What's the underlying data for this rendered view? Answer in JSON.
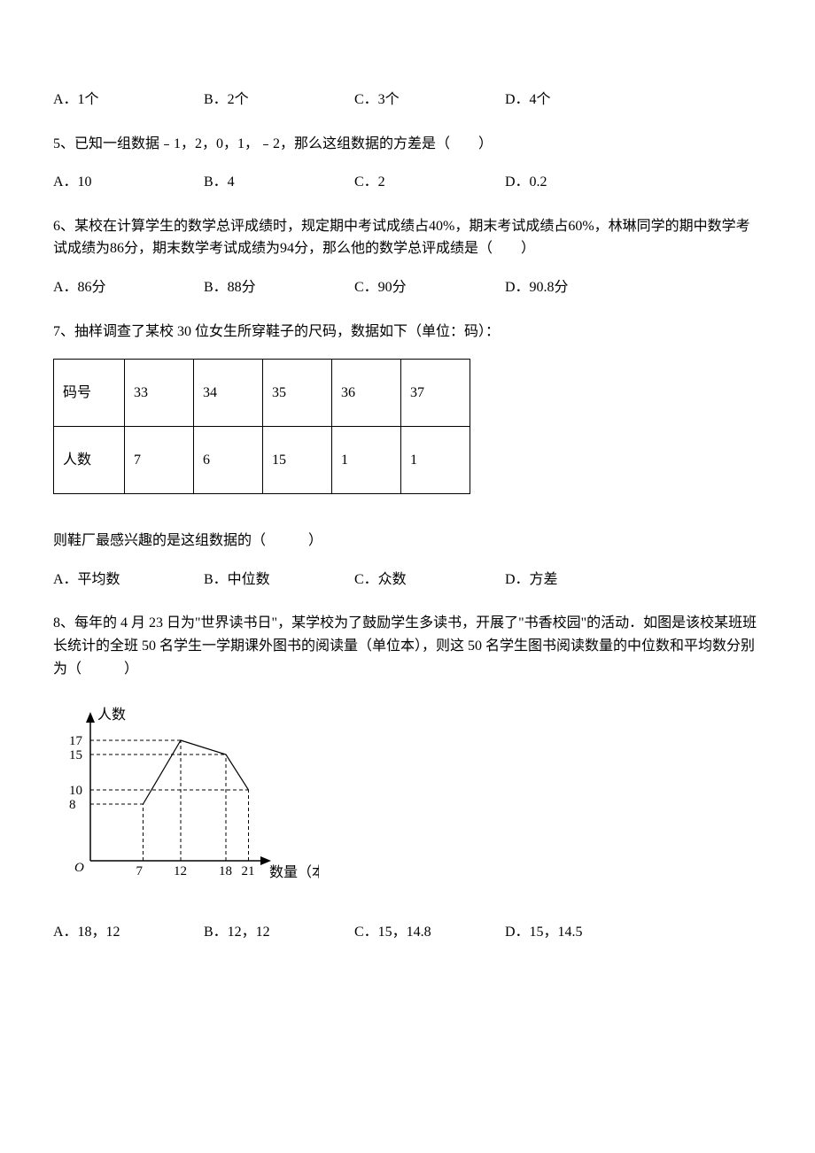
{
  "q4_options": {
    "a": "A．1个",
    "b": "B．2个",
    "c": "C．3个",
    "d": "D．4个"
  },
  "q5": {
    "text": "5、已知一组数据﹣1，2，0，1，﹣2，那么这组数据的方差是（　　）",
    "a": "A．10",
    "b": "B．4",
    "c": "C．2",
    "d": "D．0.2"
  },
  "q6": {
    "text": "6、某校在计算学生的数学总评成绩时，规定期中考试成绩占40%，期末考试成绩占60%，林琳同学的期中数学考试成绩为86分，期末数学考试成绩为94分，那么他的数学总评成绩是（　　）",
    "a": "A．86分",
    "b": "B．88分",
    "c": "C．90分",
    "d": "D．90.8分"
  },
  "q7": {
    "text": "7、抽样调查了某校 30 位女生所穿鞋子的尺码，数据如下（单位：码）：",
    "table": {
      "row1_label": "码号",
      "row1_data": [
        "33",
        "34",
        "35",
        "36",
        "37"
      ],
      "row2_label": "人数",
      "row2_data": [
        "7",
        "6",
        "15",
        "1",
        "1"
      ]
    },
    "followup": "则鞋厂最感兴趣的是这组数据的（　　　）",
    "a": "A．平均数",
    "b": "B．中位数",
    "c": "C．众数",
    "d": "D．方差"
  },
  "q8": {
    "text": "8、每年的 4 月 23 日为\"世界读书日\"，某学校为了鼓励学生多读书，开展了\"书香校园\"的活动．如图是该校某班班长统计的全班 50 名学生一学期课外图书的阅读量（单位本），则这 50 名学生图书阅读数量的中位数和平均数分别为（　　　）",
    "chart": {
      "y_axis_label": "人数",
      "x_axis_label": "数量（本）",
      "y_ticks": [
        8,
        10,
        15,
        17
      ],
      "x_ticks": [
        7,
        12,
        18,
        21
      ],
      "points": [
        {
          "x": 7,
          "y": 8
        },
        {
          "x": 12,
          "y": 17
        },
        {
          "x": 18,
          "y": 15
        },
        {
          "x": 21,
          "y": 10
        }
      ],
      "stroke_color": "#000000",
      "background_color": "#ffffff",
      "axis_width": 1.5,
      "line_width": 1.2,
      "dash_pattern": "4,3"
    },
    "a": "A．18，12",
    "b": "B．12，12",
    "c": "C．15，14.8",
    "d": "D．15，14.5"
  }
}
